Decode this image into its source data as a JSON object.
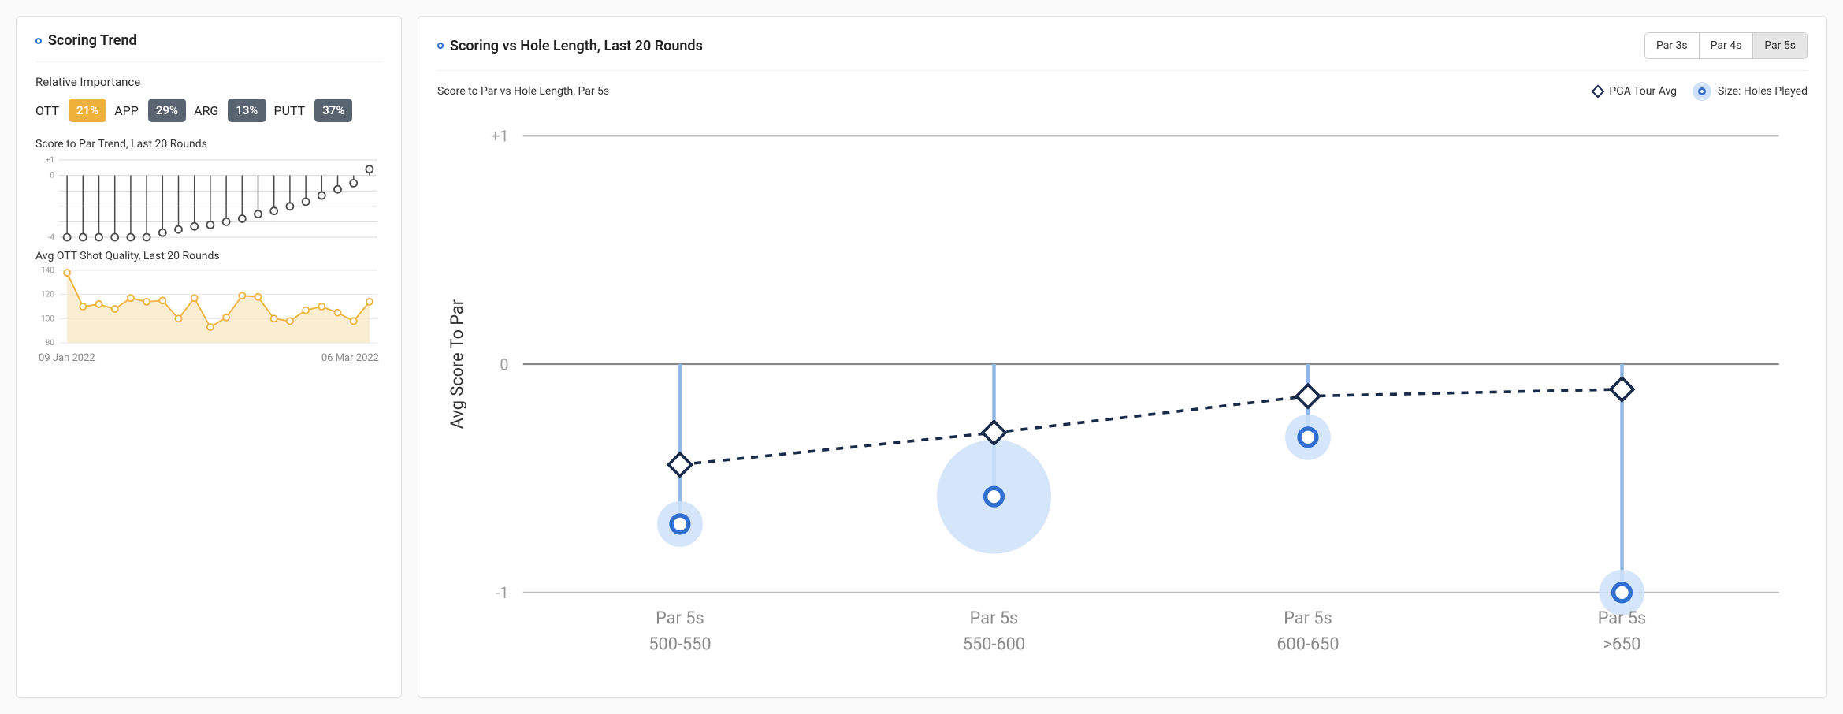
{
  "left": {
    "title": "Scoring Trend",
    "importance_label": "Relative Importance",
    "metrics": [
      {
        "label": "OTT",
        "value": "21%",
        "badge_bg": "#eeb23b"
      },
      {
        "label": "APP",
        "value": "29%",
        "badge_bg": "#5a6470"
      },
      {
        "label": "ARG",
        "value": "13%",
        "badge_bg": "#5a6470"
      },
      {
        "label": "PUTT",
        "value": "37%",
        "badge_bg": "#5a6470"
      }
    ],
    "score_trend": {
      "label": "Score to Par Trend, Last 20 Rounds",
      "ymin": -4,
      "ymax": 1,
      "ytick_step": 1,
      "show_tick_labels": [
        1,
        0,
        -4
      ],
      "values": [
        -4,
        -4,
        -4,
        -4,
        -4,
        -4,
        -3.7,
        -3.5,
        -3.3,
        -3.2,
        -3,
        -2.8,
        -2.5,
        -2.3,
        -2,
        -1.7,
        -1.3,
        -0.9,
        -0.5,
        0.4
      ],
      "stroke": "#4a4a4a",
      "marker_fill": "#fafafa",
      "grid_color": "#d8d8d8",
      "tick_color": "#9a9a9a",
      "tick_fontsize": 10
    },
    "ott_quality": {
      "label": "Avg OTT Shot Quality, Last 20 Rounds",
      "ymin": 80,
      "ymax": 140,
      "ytick_step": 20,
      "values": [
        138,
        110,
        112,
        108,
        117,
        114,
        115,
        100,
        117,
        93,
        101,
        119,
        118,
        100,
        98,
        107,
        110,
        105,
        98,
        114
      ],
      "stroke": "#eeb23b",
      "fill": "#f8e6bd",
      "marker_fill": "#ffffff",
      "grid_color": "#e8e8e8",
      "tick_color": "#9a9a9a",
      "tick_fontsize": 10
    },
    "date_start": "09 Jan 2022",
    "date_end": "06 Mar 2022"
  },
  "right": {
    "title": "Scoring vs Hole Length, Last 20 Rounds",
    "tabs": [
      "Par 3s",
      "Par 4s",
      "Par 5s"
    ],
    "active_tab": 2,
    "subtitle": "Score to Par vs Hole Length, Par 5s",
    "legend": {
      "pga": "PGA Tour Avg",
      "size": "Size: Holes Played"
    },
    "chart": {
      "ylabel": "Avg Score To Par",
      "ymin": -1,
      "ymax": 1,
      "ytick_step": 1,
      "categories": [
        {
          "line1": "Par 5s",
          "line2": "500-550",
          "player": -0.7,
          "pga": -0.44,
          "radius": 16
        },
        {
          "line1": "Par 5s",
          "line2": "550-600",
          "player": -0.58,
          "pga": -0.3,
          "radius": 40
        },
        {
          "line1": "Par 5s",
          "line2": "600-650",
          "player": -0.32,
          "pga": -0.14,
          "radius": 16
        },
        {
          "line1": "Par 5s",
          "line2": ">650",
          "player": -1.0,
          "pga": -0.11,
          "radius": 16
        }
      ],
      "zero_line_color": "#888888",
      "bound_line_color": "#bcbcbc",
      "stem_color": "#8fb8e8",
      "stem_width": 2.5,
      "player_circle_fill": "#cfe2f9",
      "player_ring_stroke": "#2f6fd1",
      "player_ring_width": 3,
      "player_inner_fill": "#ffffff",
      "pga_line_color": "#1a2b4a",
      "pga_line_width": 2,
      "pga_dash": "5,5",
      "diamond_size": 8,
      "diamond_fill": "#ffffff",
      "diamond_stroke": "#1a2b4a",
      "tick_color": "#9a9a9a",
      "tick_fontsize": 11,
      "xlabel_color": "#8a8a8a",
      "xlabel_fontsize": 12,
      "ylabel_fontsize": 12,
      "ylabel_color": "#333333"
    }
  }
}
